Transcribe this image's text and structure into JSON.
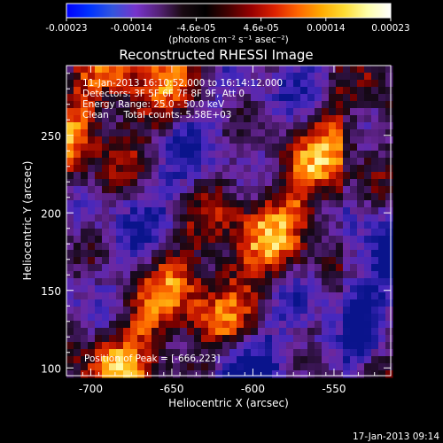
{
  "colorbar": {
    "ticks": [
      "-0.00023",
      "-0.00014",
      "-4.6e-05",
      "4.6e-05",
      "0.00014",
      "0.00023"
    ],
    "unit_label": "(photons cm⁻² s⁻¹ asec⁻²)",
    "colors": [
      "#0000ff",
      "#0033ff",
      "#3355dd",
      "#7733cc",
      "#552277",
      "#1a0a12",
      "#000000",
      "#440000",
      "#990000",
      "#dd2200",
      "#ff6600",
      "#ffaa00",
      "#ffdd33",
      "#ffffaa",
      "#ffffff"
    ]
  },
  "image": {
    "title": "Reconstructed RHESSI Image",
    "info_lines": [
      "11-Jan-2013 16:10:52.000 to 16:14:12.000",
      "Detectors: 3F 5F 6F 7F 8F 9F, Att 0",
      "Energy Range: 25.0 - 50.0 keV",
      "Clean     Total counts: 5.58E+03"
    ],
    "peak_label": "Position of Peak = [-666,223]"
  },
  "axes": {
    "xlabel": "Heliocentric X (arcsec)",
    "ylabel": "Heliocentric Y (arcsec)",
    "xticks": [
      "-700",
      "-650",
      "-600",
      "-550"
    ],
    "yticks": [
      "100",
      "150",
      "200",
      "250"
    ],
    "x_range": [
      -715,
      -515
    ],
    "y_range": [
      95,
      295
    ],
    "x_tick_values": [
      -700,
      -650,
      -600,
      -550
    ],
    "y_tick_values": [
      100,
      150,
      200,
      250
    ]
  },
  "footer": {
    "timestamp": "17-Jan-2013 09:14"
  }
}
